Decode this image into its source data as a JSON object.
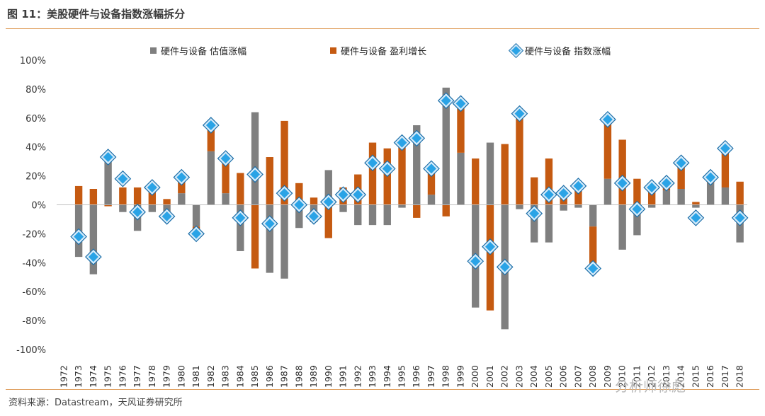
{
  "header": {
    "title": "图 11：美股硬件与设备指数涨幅拆分"
  },
  "footer": {
    "source": "资料来源：Datastream，天风证券研究所",
    "watermark": "分析师徐彪"
  },
  "colors": {
    "valuation": "#7f7f7f",
    "earnings": "#c55a11",
    "index_fill": "#2aa3e6",
    "index_stroke": "#1c6ea8",
    "rule": "#e0a060"
  },
  "chart_data": {
    "type": "bar",
    "stacked": true,
    "title": "",
    "xlabel": "",
    "ylabel": "",
    "ylim": [
      -100,
      100
    ],
    "yticks": [
      -100,
      -80,
      -60,
      -40,
      -20,
      0,
      20,
      40,
      60,
      80,
      100
    ],
    "ytick_labels": [
      "-100%",
      "-80%",
      "-60%",
      "-40%",
      "-20%",
      "0%",
      "20%",
      "40%",
      "60%",
      "80%",
      "100%"
    ],
    "grid": false,
    "legend_position": "top",
    "categories": [
      "1972",
      "1973",
      "1974",
      "1975",
      "1976",
      "1977",
      "1978",
      "1979",
      "1980",
      "1981",
      "1982",
      "1983",
      "1984",
      "1985",
      "1986",
      "1987",
      "1988",
      "1989",
      "1990",
      "1991",
      "1992",
      "1993",
      "1994",
      "1995",
      "1996",
      "1997",
      "1998",
      "1999",
      "2000",
      "2001",
      "2002",
      "2003",
      "2004",
      "2005",
      "2006",
      "2007",
      "2008",
      "2009",
      "2010",
      "2011",
      "2012",
      "2013",
      "2014",
      "2015",
      "2016",
      "2017",
      "2018"
    ],
    "series": [
      {
        "name": "硬件与设备 估值涨幅",
        "kind": "bar",
        "values": [
          0,
          -36,
          -48,
          30,
          -5,
          -18,
          -5,
          -10,
          8,
          -15,
          37,
          8,
          -32,
          64,
          -47,
          -51,
          -16,
          -12,
          24,
          -5,
          -14,
          -14,
          -14,
          -2,
          55,
          7,
          81,
          36,
          -71,
          43,
          -86,
          -3,
          -26,
          -26,
          -4,
          -2,
          -15,
          18,
          -31,
          -21,
          -2,
          10,
          11,
          -2,
          15,
          12,
          -26
        ]
      },
      {
        "name": "硬件与设备 盈利增长",
        "kind": "bar",
        "values": [
          0,
          13,
          11,
          -1,
          12,
          12,
          10,
          4,
          10,
          -5,
          18,
          25,
          22,
          -44,
          33,
          58,
          15,
          5,
          -23,
          12,
          21,
          43,
          39,
          44,
          -9,
          18,
          -8,
          34,
          32,
          -73,
          42,
          60,
          19,
          32,
          10,
          15,
          -29,
          43,
          45,
          18,
          15,
          6,
          19,
          2,
          5,
          28,
          16
        ]
      },
      {
        "name": "硬件与设备 指数涨幅",
        "kind": "diamond",
        "values": [
          null,
          -22,
          -36,
          33,
          18,
          -5,
          12,
          -8,
          19,
          -20,
          55,
          32,
          -9,
          21,
          -13,
          8,
          0,
          -8,
          2,
          7,
          7,
          29,
          25,
          43,
          46,
          25,
          72,
          70,
          -39,
          -29,
          -43,
          63,
          -6,
          7,
          8,
          13,
          -44,
          59,
          15,
          -3,
          12,
          15,
          29,
          -9,
          19,
          39,
          -9
        ]
      }
    ]
  }
}
